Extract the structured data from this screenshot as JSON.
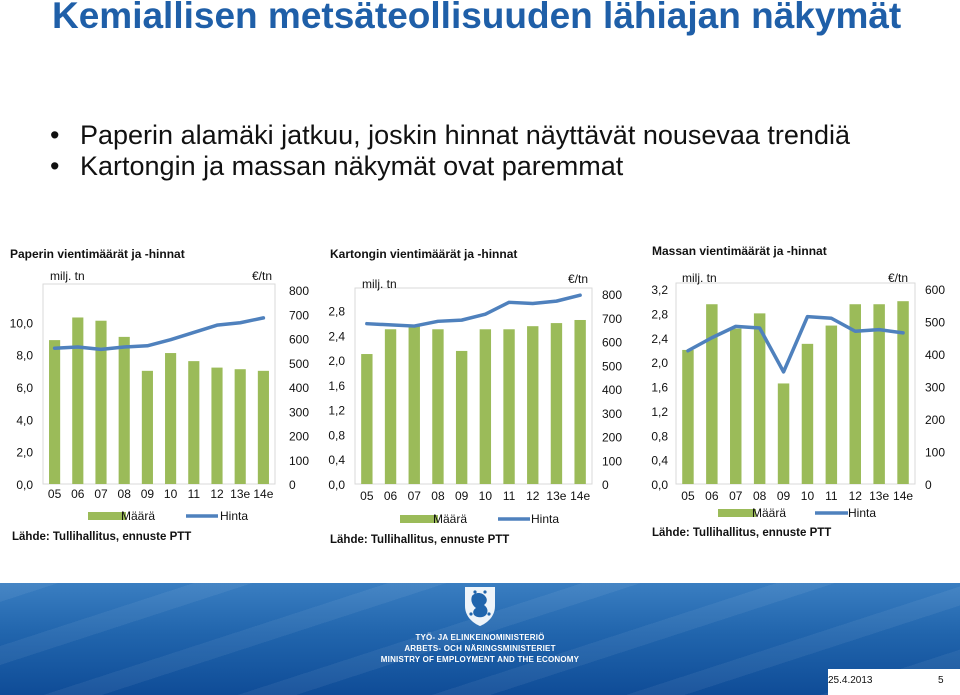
{
  "slide": {
    "title": "Kemiallisen metsäteollisuuden lähiajan näkymät",
    "bullets": [
      "Paperin alamäki jatkuu, joskin hinnat näyttävät nousevaa trendiä",
      "Kartongin ja massan näkymät ovat paremmat"
    ],
    "footer": {
      "ministry_lines": [
        "TYÖ- JA ELINKEINOMINISTERIÖ",
        "ARBETS- OCH NÄRINGSMINISTERIET",
        "MINISTRY OF EMPLOYMENT AND THE ECONOMY"
      ],
      "date": "25.4.2013",
      "page_number": "5",
      "crest_icon": "lion-crest-icon"
    }
  },
  "colors": {
    "title": "#1f5fa8",
    "bar": "#9bbb59",
    "line": "#4f81bd",
    "grid": "#d9d9d9",
    "footer": "#2165ad"
  },
  "chart_data": [
    {
      "type": "bar",
      "title": "Paperin vientimäärät ja -hinnat",
      "left_unit": "milj. tn",
      "right_unit": "€/tn",
      "categories": [
        "05",
        "06",
        "07",
        "08",
        "09",
        "10",
        "11",
        "12",
        "13e",
        "14e"
      ],
      "left_ticks": [
        "0,0",
        "2,0",
        "4,0",
        "6,0",
        "8,0",
        "10,0"
      ],
      "right_ticks": [
        "0",
        "100",
        "200",
        "300",
        "400",
        "500",
        "600",
        "700",
        "800"
      ],
      "ylim_left": [
        0,
        12
      ],
      "ylim_right": [
        0,
        800
      ],
      "series": [
        {
          "name": "Määrä",
          "type": "bar",
          "axis": "left",
          "values": [
            8.9,
            10.3,
            10.1,
            9.1,
            7.0,
            8.1,
            7.6,
            7.2,
            7.1,
            7.0
          ]
        },
        {
          "name": "Hinta",
          "type": "line",
          "axis": "right",
          "values": [
            560,
            565,
            555,
            565,
            570,
            595,
            625,
            655,
            665,
            685
          ]
        }
      ],
      "legend": [
        "Määrä",
        "Hinta"
      ],
      "source": "Lähde: Tullihallitus, ennuste PTT"
    },
    {
      "type": "bar",
      "title": "Kartongin vientimäärät ja -hinnat",
      "left_unit": "milj. tn",
      "right_unit": "€/tn",
      "categories": [
        "05",
        "06",
        "07",
        "08",
        "09",
        "10",
        "11",
        "12",
        "13e",
        "14e"
      ],
      "left_ticks": [
        "0,0",
        "0,4",
        "0,8",
        "1,2",
        "1,6",
        "2,0",
        "2,4",
        "2,8"
      ],
      "right_ticks": [
        "0",
        "100",
        "200",
        "300",
        "400",
        "500",
        "600",
        "700",
        "800"
      ],
      "ylim_left": [
        0,
        3.07
      ],
      "ylim_right": [
        0,
        800
      ],
      "series": [
        {
          "name": "Määrä",
          "type": "bar",
          "axis": "left",
          "values": [
            2.1,
            2.5,
            2.55,
            2.5,
            2.15,
            2.5,
            2.5,
            2.55,
            2.6,
            2.65
          ]
        },
        {
          "name": "Hinta",
          "type": "line",
          "axis": "right",
          "values": [
            675,
            670,
            665,
            685,
            690,
            715,
            765,
            760,
            770,
            795
          ]
        }
      ],
      "legend": [
        "Määrä",
        "Hinta"
      ],
      "source": "Lähde: Tullihallitus, ennuste PTT"
    },
    {
      "type": "bar",
      "title": "Massan vientimäärät ja -hinnat",
      "left_unit": "milj. tn",
      "right_unit": "€/tn",
      "categories": [
        "05",
        "06",
        "07",
        "08",
        "09",
        "10",
        "11",
        "12",
        "13e",
        "14e"
      ],
      "left_ticks": [
        "0,0",
        "0,4",
        "0,8",
        "1,2",
        "1,6",
        "2,0",
        "2,4",
        "2,8",
        "3,2"
      ],
      "right_ticks": [
        "0",
        "100",
        "200",
        "300",
        "400",
        "500",
        "600"
      ],
      "ylim_left": [
        0,
        3.2
      ],
      "ylim_right": [
        0,
        600
      ],
      "series": [
        {
          "name": "Määrä",
          "type": "bar",
          "axis": "left",
          "values": [
            2.2,
            2.95,
            2.55,
            2.8,
            1.65,
            2.3,
            2.6,
            2.95,
            2.95,
            3.0
          ]
        },
        {
          "name": "Hinta",
          "type": "line",
          "axis": "right",
          "values": [
            410,
            450,
            485,
            480,
            345,
            515,
            510,
            470,
            475,
            465
          ]
        }
      ],
      "legend": [
        "Määrä",
        "Hinta"
      ],
      "source": "Lähde: Tullihallitus, ennuste PTT"
    }
  ]
}
